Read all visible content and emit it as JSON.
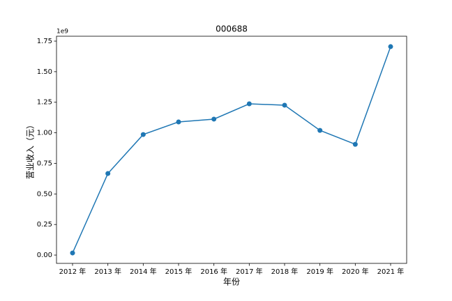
{
  "chart_data": {
    "type": "line",
    "title": "000688",
    "x_label": "年份",
    "y_label": "营业收入（元）",
    "y_scale_label": "1e9",
    "categories": [
      "2012 年",
      "2013 年",
      "2014 年",
      "2015 年",
      "2016 年",
      "2017 年",
      "2018 年",
      "2019 年",
      "2020 年",
      "2021 年"
    ],
    "series": [
      {
        "color": "#1f77b4",
        "values": [
          0.017,
          0.667,
          0.986,
          1.089,
          1.112,
          1.237,
          1.226,
          1.02,
          0.906,
          1.705
        ]
      }
    ],
    "ylim": [
      -0.068,
      1.79
    ],
    "yticks": [
      {
        "value": 0,
        "label": "0.00"
      },
      {
        "value": 0.25,
        "label": "0.25"
      },
      {
        "value": 0.5,
        "label": "0.50"
      },
      {
        "value": 0.75,
        "label": "0.75"
      },
      {
        "value": 1,
        "label": "1.00"
      },
      {
        "value": 1.25,
        "label": "1.25"
      },
      {
        "value": 1.5,
        "label": "1.50"
      },
      {
        "value": 1.75,
        "label": "1.75"
      }
    ],
    "grid": false
  }
}
